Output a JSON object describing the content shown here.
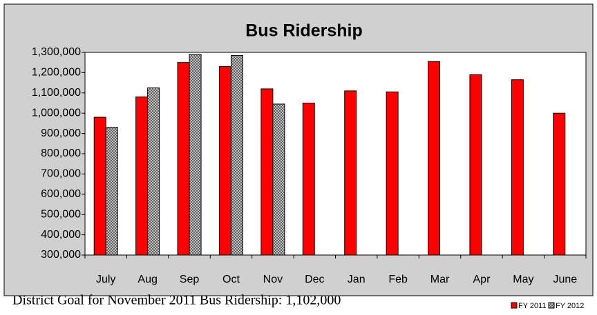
{
  "chart_data": {
    "type": "bar",
    "title": "Bus Ridership",
    "categories": [
      "July",
      "Aug",
      "Sep",
      "Oct",
      "Nov",
      "Dec",
      "Jan",
      "Feb",
      "Mar",
      "Apr",
      "May",
      "June"
    ],
    "series": [
      {
        "name": "FY 2011",
        "color": "#ff0000",
        "values": [
          980000,
          1080000,
          1250000,
          1230000,
          1120000,
          1050000,
          1110000,
          1105000,
          1255000,
          1190000,
          1165000,
          1000000
        ]
      },
      {
        "name": "FY 2012",
        "color": "#c0c0c0",
        "values": [
          930000,
          1125000,
          1290000,
          1285000,
          1045000,
          null,
          null,
          null,
          null,
          null,
          null,
          null
        ]
      }
    ],
    "ylim": [
      300000,
      1300000
    ],
    "yticks": [
      {
        "value": 300000,
        "label": "300,000"
      },
      {
        "value": 400000,
        "label": "400,000"
      },
      {
        "value": 500000,
        "label": "500,000"
      },
      {
        "value": 600000,
        "label": "600,000"
      },
      {
        "value": 700000,
        "label": "700,000"
      },
      {
        "value": 800000,
        "label": "800,000"
      },
      {
        "value": 900000,
        "label": "900,000"
      },
      {
        "value": 1000000,
        "label": "1,000,000"
      },
      {
        "value": 1100000,
        "label": "1,100,000"
      },
      {
        "value": 1200000,
        "label": "1,200,000"
      },
      {
        "value": 1300000,
        "label": "1,300,000"
      }
    ],
    "annotation": "District Goal for November 2011 Bus Ridership:  1,102,000"
  }
}
